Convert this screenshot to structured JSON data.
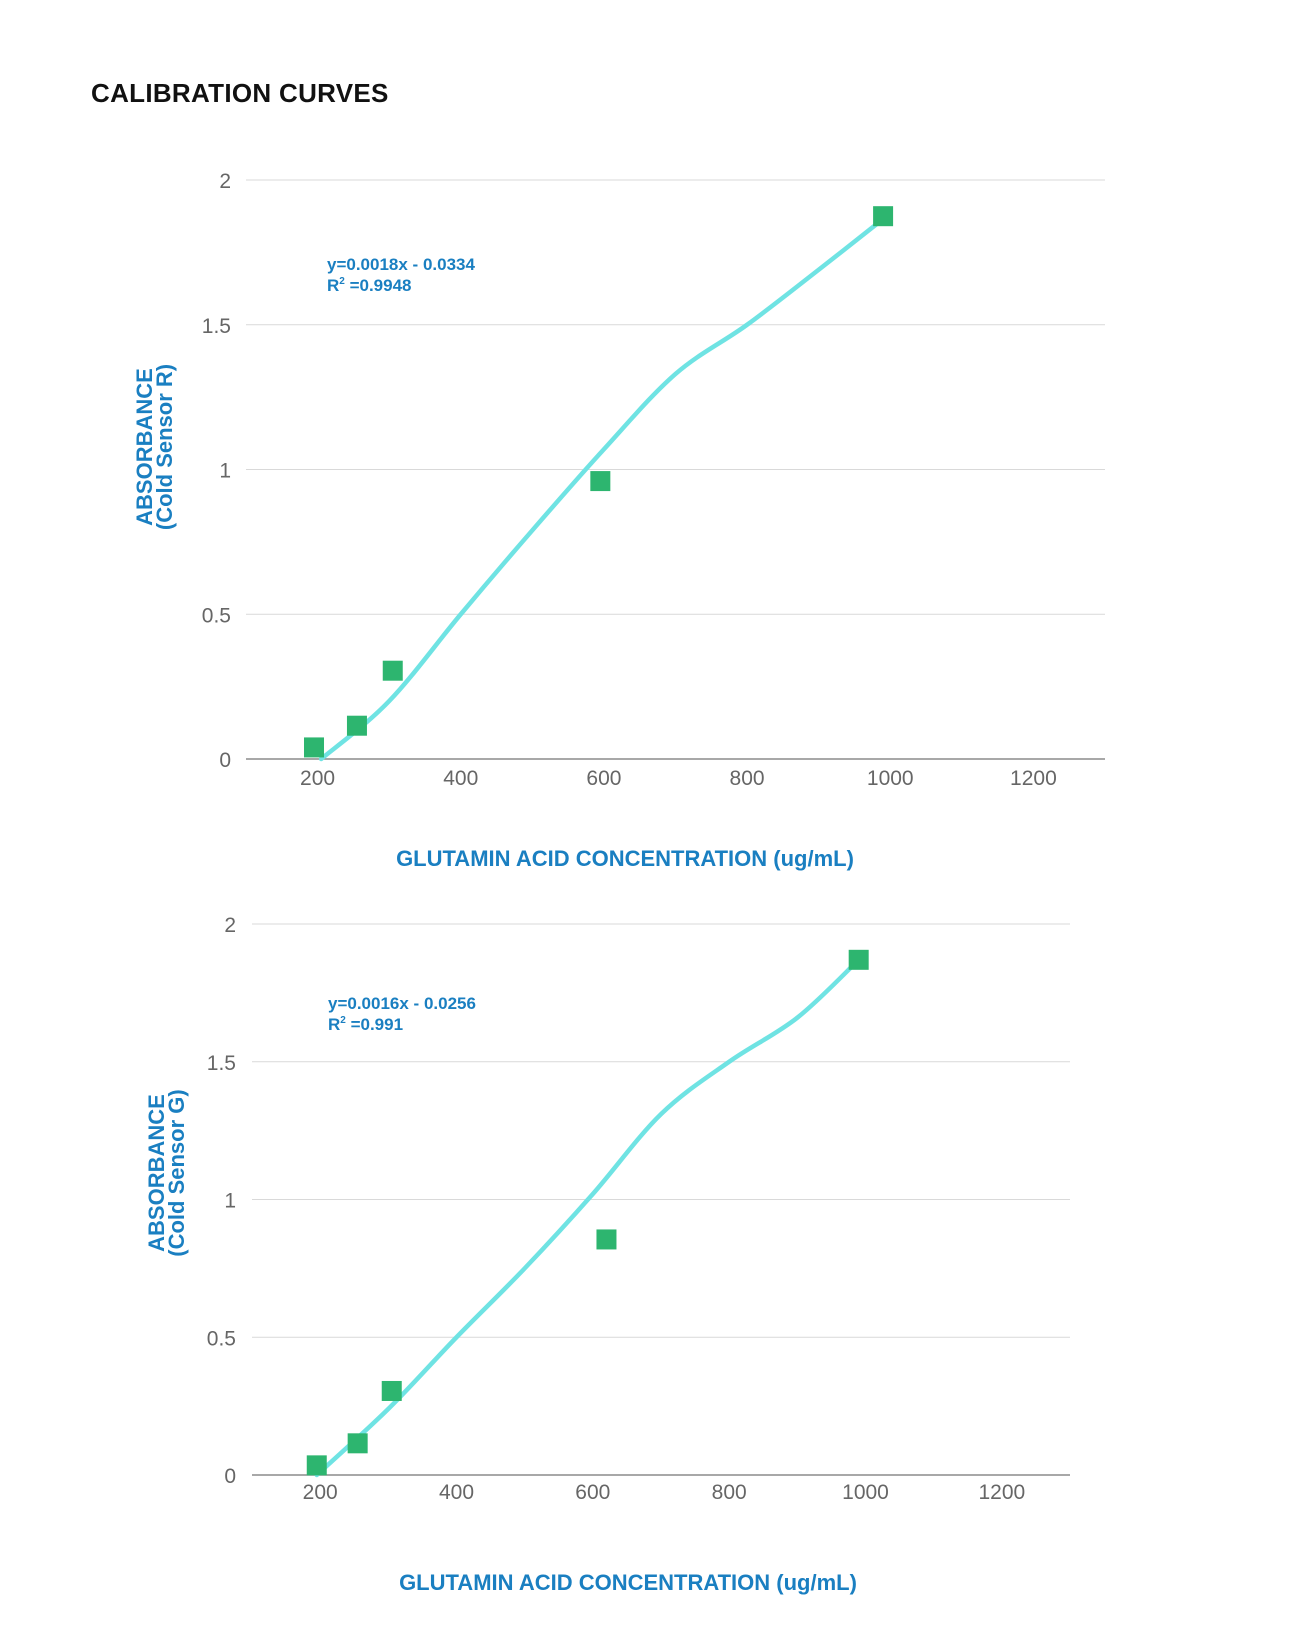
{
  "page": {
    "title": "CALIBRATION CURVES"
  },
  "colors": {
    "fit_line": "#6fe3e3",
    "marker": "#2db56f",
    "axis_text": "#1a7fc1",
    "gridline": "#d9d9d9",
    "tick_text": "#666666"
  },
  "chart_data": [
    {
      "type": "scatter",
      "xlabel": "GLUTAMIN ACID CONCENTRATION  (ug/mL)",
      "ylabel_line1": "ABSORBANCE",
      "ylabel_line2": "(Cold Sensor R)",
      "equation": "y=0.0018x - 0.0334",
      "r2_prefix": "R",
      "r2_sup": "2",
      "r2_value": " =0.9948",
      "xlim": [
        100,
        1300
      ],
      "ylim": [
        0,
        2
      ],
      "xticks": [
        200,
        400,
        600,
        800,
        1000,
        1200
      ],
      "xtick_labels": [
        "200",
        "400",
        "600",
        "800",
        "1000",
        "1200"
      ],
      "yticks": [
        0,
        0.5,
        1,
        1.5,
        2
      ],
      "ytick_labels": [
        "0",
        "0.5",
        "1",
        "1.5",
        "2"
      ],
      "grid": true,
      "series": [
        {
          "points": [
            [
              195,
              0.04
            ],
            [
              255,
              0.115
            ],
            [
              305,
              0.305
            ],
            [
              595,
              0.96
            ],
            [
              990,
              1.875
            ]
          ]
        }
      ],
      "fit_curve": [
        [
          205,
          0.0
        ],
        [
          300,
          0.2
        ],
        [
          400,
          0.5
        ],
        [
          500,
          0.79
        ],
        [
          600,
          1.07
        ],
        [
          700,
          1.33
        ],
        [
          800,
          1.5
        ],
        [
          900,
          1.69
        ],
        [
          995,
          1.875
        ]
      ]
    },
    {
      "type": "scatter",
      "xlabel": "GLUTAMIN ACID CONCENTRATION   (ug/mL)",
      "ylabel_line1": "ABSORBANCE",
      "ylabel_line2": "(Cold Sensor G)",
      "equation": "y=0.0016x - 0.0256",
      "r2_prefix": "R",
      "r2_sup": "2",
      "r2_value": " =0.991",
      "xlim": [
        100,
        1300
      ],
      "ylim": [
        0,
        2
      ],
      "xticks": [
        200,
        400,
        600,
        800,
        1000,
        1200
      ],
      "xtick_labels": [
        "200",
        "400",
        "600",
        "800",
        "1000",
        "1200"
      ],
      "yticks": [
        0,
        0.5,
        1,
        1.5,
        2
      ],
      "ytick_labels": [
        "0",
        "0.5",
        "1",
        "1.5",
        "2"
      ],
      "grid": true,
      "series": [
        {
          "points": [
            [
              195,
              0.035
            ],
            [
              255,
              0.115
            ],
            [
              305,
              0.305
            ],
            [
              620,
              0.855
            ],
            [
              990,
              1.87
            ]
          ]
        }
      ],
      "fit_curve": [
        [
          195,
          0.0
        ],
        [
          300,
          0.24
        ],
        [
          400,
          0.5
        ],
        [
          500,
          0.75
        ],
        [
          600,
          1.02
        ],
        [
          700,
          1.31
        ],
        [
          800,
          1.5
        ],
        [
          900,
          1.66
        ],
        [
          990,
          1.87
        ]
      ]
    }
  ]
}
